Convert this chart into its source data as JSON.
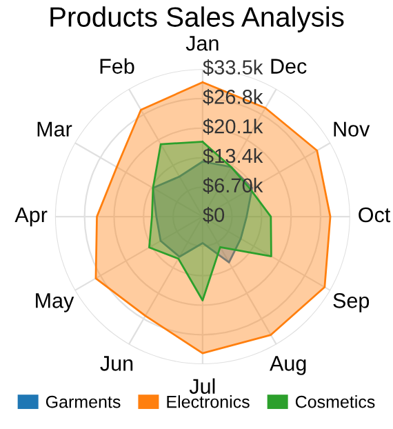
{
  "chart_data": {
    "type": "radar",
    "title": "Products Sales Analysis",
    "categories": [
      "Jan",
      "Dec",
      "Nov",
      "Oct",
      "Sep",
      "Aug",
      "Jul",
      "Jun",
      "May",
      "Apr",
      "Mar",
      "Feb"
    ],
    "series": [
      {
        "name": "Garments",
        "color": "#1f77b4",
        "values": [
          12500,
          13000,
          13000,
          10000,
          10000,
          12000,
          6000,
          10500,
          11000,
          10500,
          13000,
          10500
        ]
      },
      {
        "name": "Electronics",
        "color": "#ff7f0e",
        "values": [
          30500,
          28500,
          30000,
          29000,
          32000,
          31000,
          31000,
          26000,
          28000,
          24000,
          22500,
          28000
        ]
      },
      {
        "name": "Cosmetics",
        "color": "#2ca02c",
        "values": [
          17000,
          13000,
          12500,
          15500,
          18000,
          8000,
          19000,
          11000,
          14000,
          11500,
          13000,
          19000
        ]
      }
    ],
    "ylim": [
      0,
      33500
    ],
    "yticks": [
      {
        "value": 0,
        "label": "$0"
      },
      {
        "value": 6700,
        "label": "$6.70k"
      },
      {
        "value": 13400,
        "label": "$13.4k"
      },
      {
        "value": 20100,
        "label": "$20.1k"
      },
      {
        "value": 26800,
        "label": "$26.8k"
      },
      {
        "value": 33500,
        "label": "$33.5k"
      }
    ],
    "grid": true,
    "legend": "bottom",
    "marker": "none",
    "line_style": "solid"
  }
}
